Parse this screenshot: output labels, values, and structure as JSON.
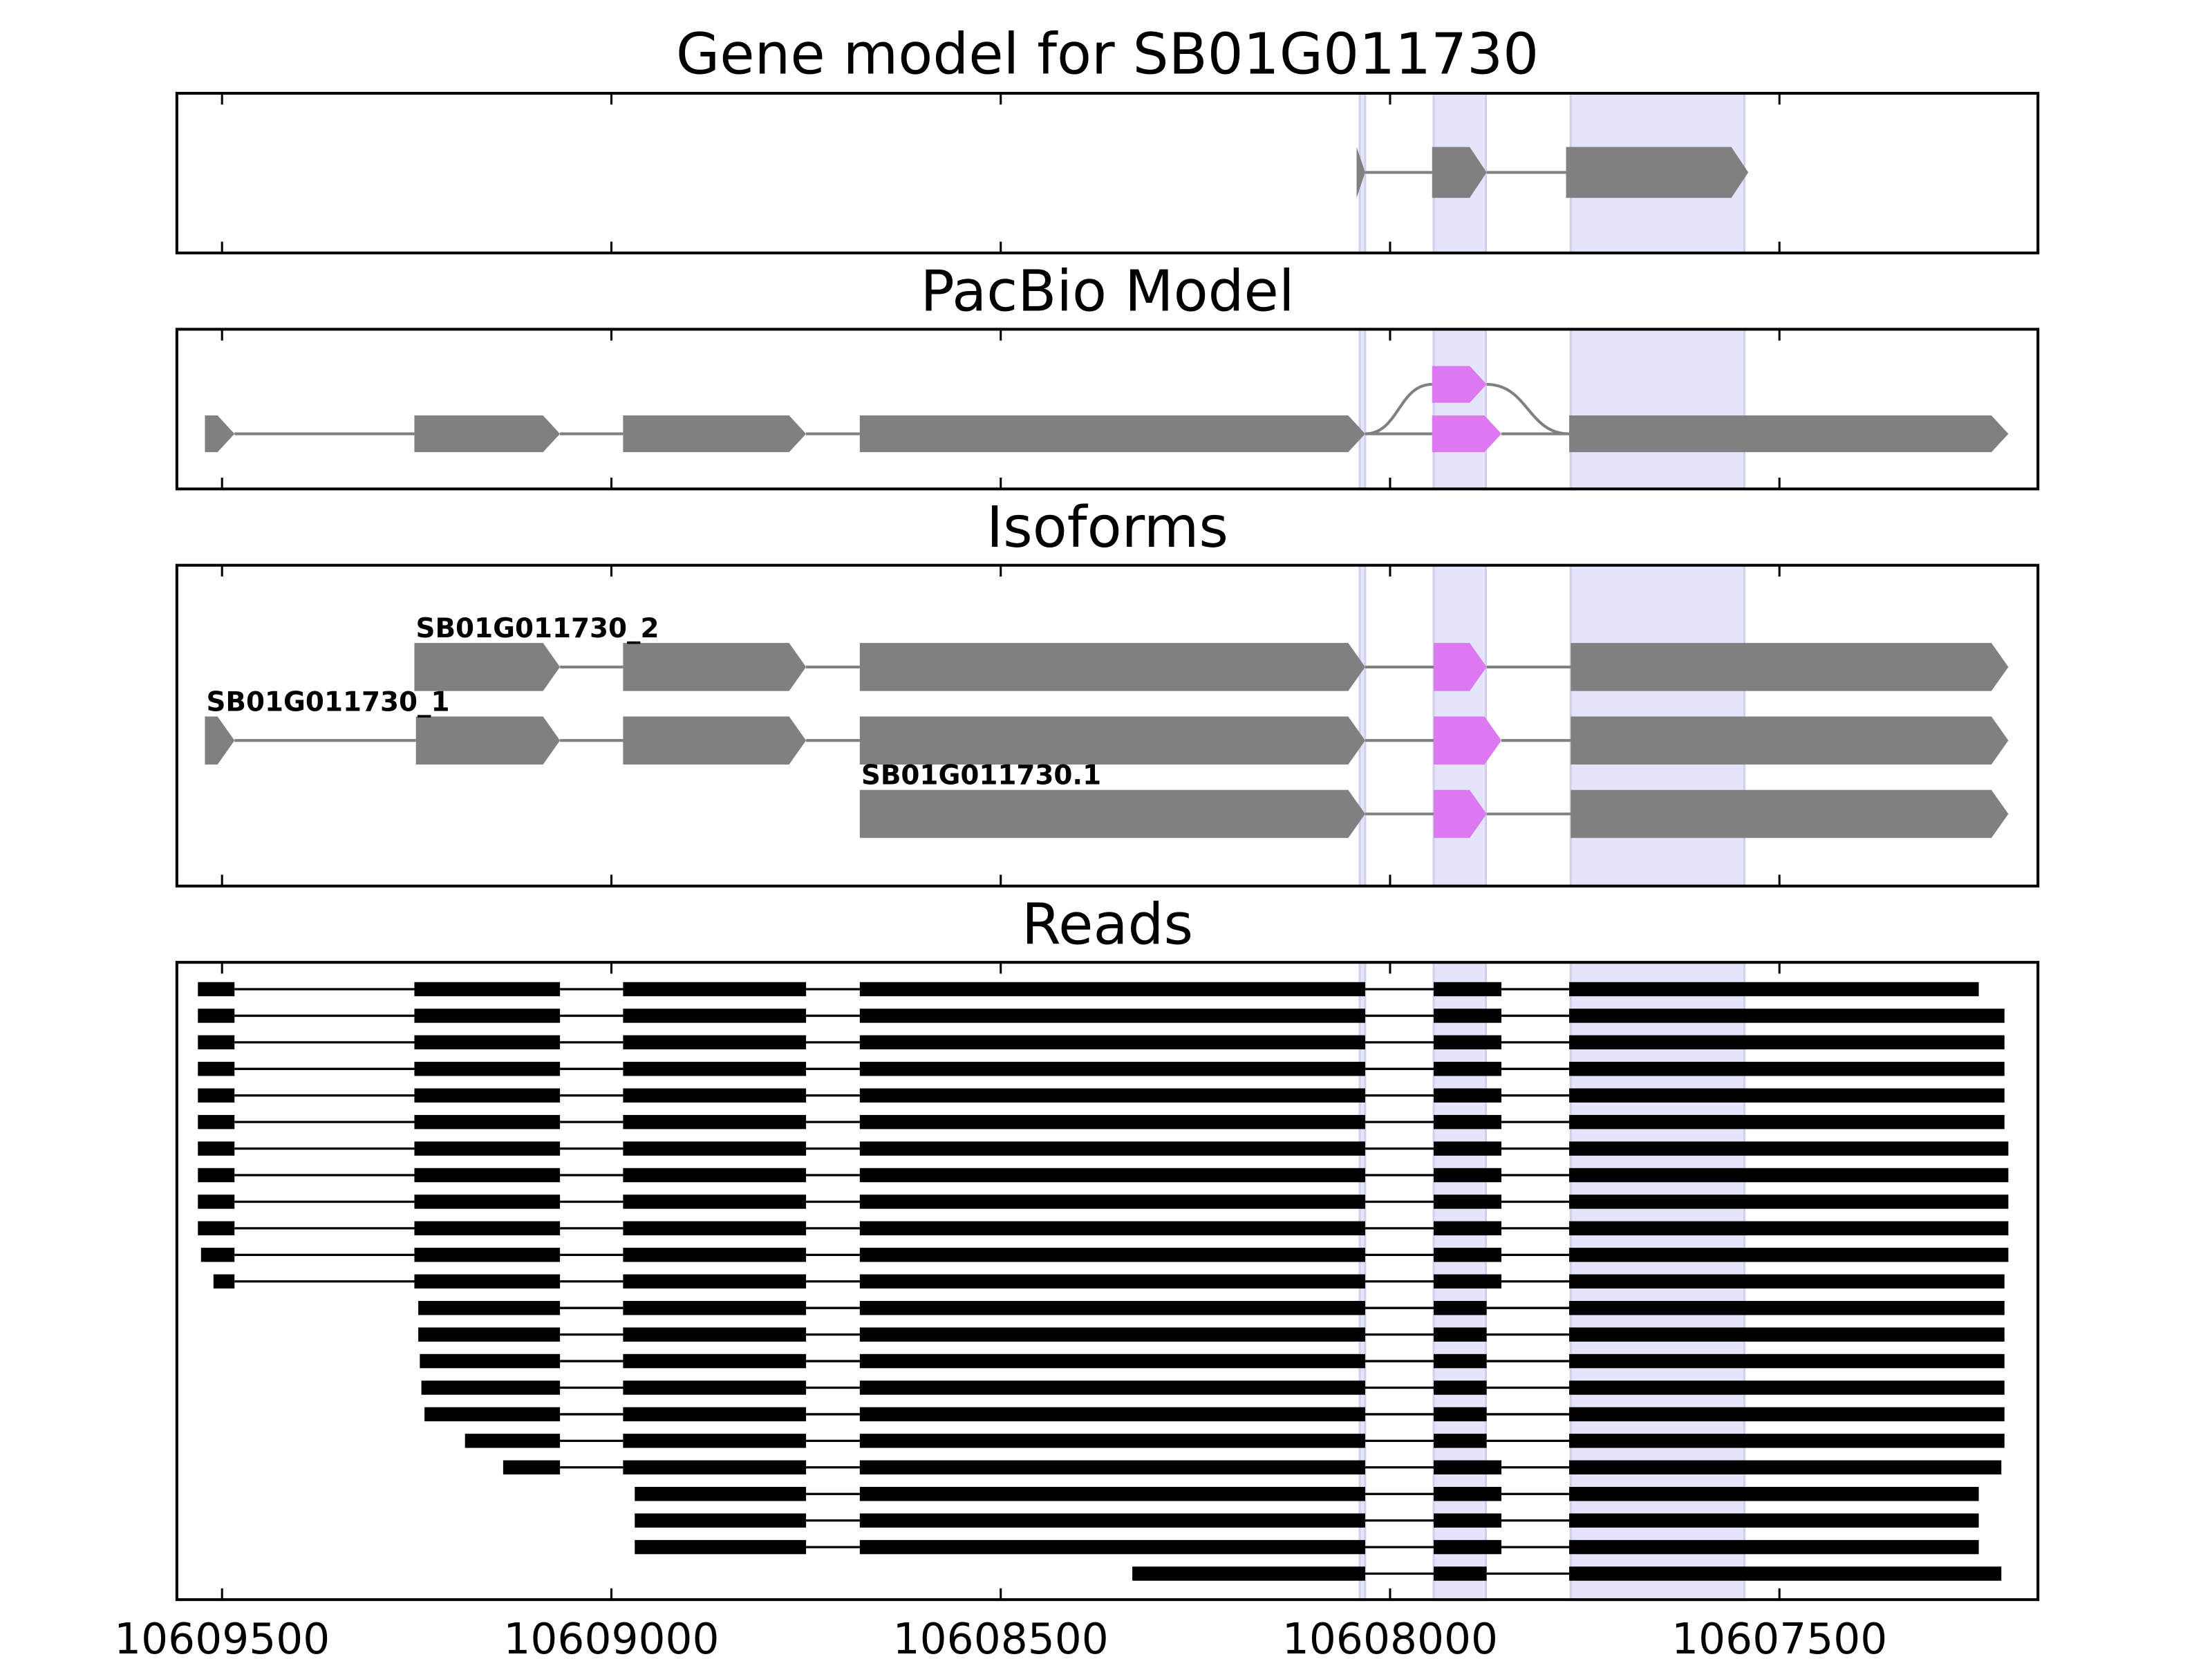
{
  "chart_data": {
    "type": "gene_tracks",
    "xlim": [
      10609558,
      10607168
    ],
    "xticks": [
      10609500,
      10609000,
      10608500,
      10608000,
      10607500
    ],
    "highlights": [
      [
        10608039,
        10608032
      ],
      [
        10607944,
        10607877
      ],
      [
        10607768,
        10607545
      ]
    ],
    "highlight_color": "#e4e4fb",
    "panels": [
      {
        "title": "Gene model for SB01G011730",
        "color": "#808080",
        "features": [
          {
            "exons": [
              [
                10608043,
                10608032
              ],
              [
                10607946,
                10607876
              ],
              [
                10607774,
                10607540
              ]
            ]
          }
        ]
      },
      {
        "title": "PacBio Model",
        "color": "#808080",
        "features": [
          {
            "exons": [
              [
                10609522,
                10609484
              ],
              [
                10609253,
                10609066
              ],
              [
                10608985,
                10608750
              ],
              [
                10608681,
                10608032
              ],
              [
                10607946,
                10607857
              ],
              [
                10607770,
                10607206
              ]
            ],
            "colors": [
              "#808080",
              "#808080",
              "#808080",
              "#808080",
              "#dc78f0",
              "#808080"
            ]
          },
          {
            "exons": [
              [
                10607946,
                10607876
              ]
            ],
            "colors": [
              "#dc78f0"
            ]
          }
        ]
      },
      {
        "title": "Isoforms",
        "color": "#808080",
        "features": [
          {
            "name": "SB01G011730_2",
            "exons": [
              [
                10609253,
                10609066
              ],
              [
                10608985,
                10608750
              ],
              [
                10608681,
                10608032
              ],
              [
                10607944,
                10607876
              ],
              [
                10607768,
                10607206
              ]
            ],
            "colors": [
              "#808080",
              "#808080",
              "#808080",
              "#dc78f0",
              "#808080"
            ]
          },
          {
            "name": "SB01G011730_1",
            "exons": [
              [
                10609522,
                10609484
              ],
              [
                10609251,
                10609066
              ],
              [
                10608985,
                10608750
              ],
              [
                10608681,
                10608032
              ],
              [
                10607944,
                10607857
              ],
              [
                10607768,
                10607206
              ]
            ],
            "colors": [
              "#808080",
              "#808080",
              "#808080",
              "#808080",
              "#dc78f0",
              "#808080"
            ]
          },
          {
            "name": "SB01G011730.1",
            "exons": [
              [
                10608681,
                10608032
              ],
              [
                10607944,
                10607876
              ],
              [
                10607768,
                10607206
              ]
            ],
            "colors": [
              "#808080",
              "#dc78f0",
              "#808080"
            ]
          }
        ]
      },
      {
        "title": "Reads",
        "color": "#000000",
        "features": [
          {
            "exons": [
              [
                10609531,
                10609484
              ],
              [
                10609253,
                10609066
              ],
              [
                10608985,
                10608750
              ],
              [
                10608681,
                10608032
              ],
              [
                10607944,
                10607857
              ],
              [
                10607770,
                10607244
              ]
            ]
          },
          {
            "exons": [
              [
                10609531,
                10609484
              ],
              [
                10609253,
                10609066
              ],
              [
                10608985,
                10608750
              ],
              [
                10608681,
                10608032
              ],
              [
                10607944,
                10607857
              ],
              [
                10607770,
                10607211
              ]
            ]
          },
          {
            "exons": [
              [
                10609531,
                10609484
              ],
              [
                10609253,
                10609066
              ],
              [
                10608985,
                10608750
              ],
              [
                10608681,
                10608032
              ],
              [
                10607944,
                10607857
              ],
              [
                10607770,
                10607211
              ]
            ]
          },
          {
            "exons": [
              [
                10609531,
                10609484
              ],
              [
                10609253,
                10609066
              ],
              [
                10608985,
                10608750
              ],
              [
                10608681,
                10608032
              ],
              [
                10607944,
                10607857
              ],
              [
                10607770,
                10607211
              ]
            ]
          },
          {
            "exons": [
              [
                10609531,
                10609484
              ],
              [
                10609253,
                10609066
              ],
              [
                10608985,
                10608750
              ],
              [
                10608681,
                10608032
              ],
              [
                10607944,
                10607857
              ],
              [
                10607770,
                10607211
              ]
            ]
          },
          {
            "exons": [
              [
                10609531,
                10609484
              ],
              [
                10609253,
                10609066
              ],
              [
                10608985,
                10608750
              ],
              [
                10608681,
                10608032
              ],
              [
                10607944,
                10607857
              ],
              [
                10607770,
                10607211
              ]
            ]
          },
          {
            "exons": [
              [
                10609531,
                10609484
              ],
              [
                10609253,
                10609066
              ],
              [
                10608985,
                10608750
              ],
              [
                10608681,
                10608032
              ],
              [
                10607944,
                10607857
              ],
              [
                10607770,
                10607206
              ]
            ]
          },
          {
            "exons": [
              [
                10609531,
                10609484
              ],
              [
                10609253,
                10609066
              ],
              [
                10608985,
                10608750
              ],
              [
                10608681,
                10608032
              ],
              [
                10607944,
                10607857
              ],
              [
                10607770,
                10607206
              ]
            ]
          },
          {
            "exons": [
              [
                10609531,
                10609484
              ],
              [
                10609253,
                10609066
              ],
              [
                10608985,
                10608750
              ],
              [
                10608681,
                10608032
              ],
              [
                10607944,
                10607857
              ],
              [
                10607770,
                10607206
              ]
            ]
          },
          {
            "exons": [
              [
                10609531,
                10609484
              ],
              [
                10609253,
                10609066
              ],
              [
                10608985,
                10608750
              ],
              [
                10608681,
                10608032
              ],
              [
                10607944,
                10607857
              ],
              [
                10607770,
                10607206
              ]
            ]
          },
          {
            "exons": [
              [
                10609527,
                10609484
              ],
              [
                10609253,
                10609066
              ],
              [
                10608985,
                10608750
              ],
              [
                10608681,
                10608032
              ],
              [
                10607944,
                10607857
              ],
              [
                10607770,
                10607206
              ]
            ]
          },
          {
            "exons": [
              [
                10609511,
                10609484
              ],
              [
                10609253,
                10609066
              ],
              [
                10608985,
                10608750
              ],
              [
                10608681,
                10608032
              ],
              [
                10607944,
                10607857
              ],
              [
                10607770,
                10607211
              ]
            ]
          },
          {
            "exons": [
              [
                10609248,
                10609066
              ],
              [
                10608985,
                10608750
              ],
              [
                10608681,
                10608032
              ],
              [
                10607944,
                10607876
              ],
              [
                10607770,
                10607211
              ]
            ]
          },
          {
            "exons": [
              [
                10609248,
                10609066
              ],
              [
                10608985,
                10608750
              ],
              [
                10608681,
                10608032
              ],
              [
                10607944,
                10607876
              ],
              [
                10607770,
                10607211
              ]
            ]
          },
          {
            "exons": [
              [
                10609246,
                10609066
              ],
              [
                10608985,
                10608750
              ],
              [
                10608681,
                10608032
              ],
              [
                10607944,
                10607876
              ],
              [
                10607770,
                10607211
              ]
            ]
          },
          {
            "exons": [
              [
                10609244,
                10609066
              ],
              [
                10608985,
                10608750
              ],
              [
                10608681,
                10608032
              ],
              [
                10607944,
                10607876
              ],
              [
                10607770,
                10607211
              ]
            ]
          },
          {
            "exons": [
              [
                10609240,
                10609066
              ],
              [
                10608985,
                10608750
              ],
              [
                10608681,
                10608032
              ],
              [
                10607944,
                10607876
              ],
              [
                10607770,
                10607211
              ]
            ]
          },
          {
            "exons": [
              [
                10609188,
                10609066
              ],
              [
                10608985,
                10608750
              ],
              [
                10608681,
                10608032
              ],
              [
                10607944,
                10607876
              ],
              [
                10607770,
                10607211
              ]
            ]
          },
          {
            "exons": [
              [
                10609139,
                10609066
              ],
              [
                10608985,
                10608750
              ],
              [
                10608681,
                10608032
              ],
              [
                10607944,
                10607857
              ],
              [
                10607770,
                10607215
              ]
            ]
          },
          {
            "exons": [
              [
                10608970,
                10608750
              ],
              [
                10608681,
                10608032
              ],
              [
                10607944,
                10607857
              ],
              [
                10607770,
                10607244
              ]
            ]
          },
          {
            "exons": [
              [
                10608970,
                10608750
              ],
              [
                10608681,
                10608032
              ],
              [
                10607944,
                10607857
              ],
              [
                10607770,
                10607244
              ]
            ]
          },
          {
            "exons": [
              [
                10608970,
                10608750
              ],
              [
                10608681,
                10608032
              ],
              [
                10607944,
                10607857
              ],
              [
                10607770,
                10607244
              ]
            ]
          },
          {
            "exons": [
              [
                10608331,
                10608032
              ],
              [
                10607944,
                10607876
              ],
              [
                10607770,
                10607215
              ]
            ]
          }
        ]
      }
    ]
  }
}
